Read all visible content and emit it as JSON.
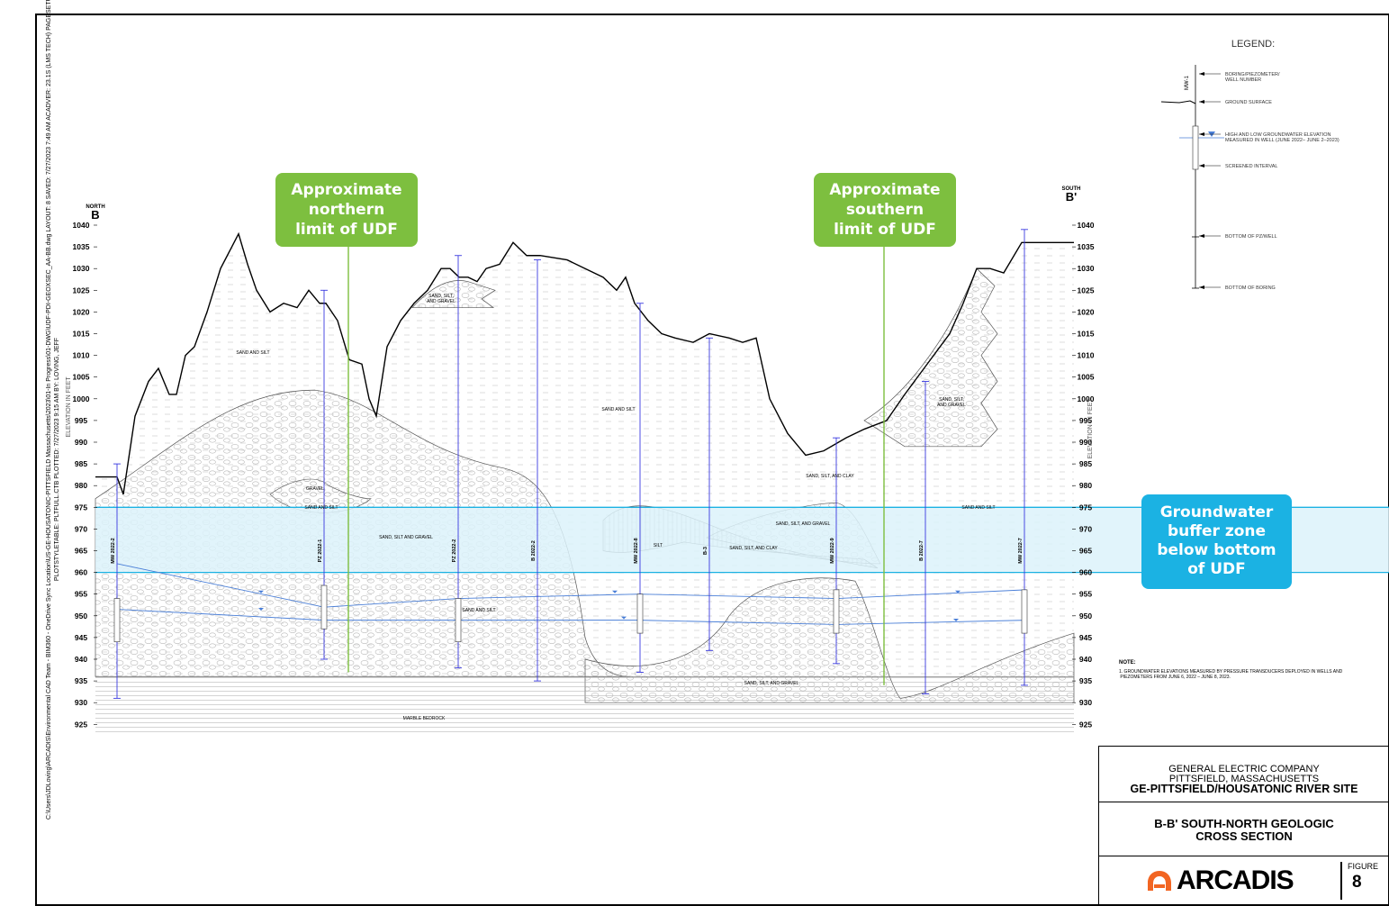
{
  "sheet_info": {
    "line1": "C:\\Users\\JDLoving\\ARCADIS\\Environmental CAD Team - BIM360 - OneDrive Sync Location\\US-GE-HOUSATONIC-PITTSFIELD Massachusetts\\2023\\01-In Progress\\01-DWG\\UDF-PDI-GEOXSEC_AA-BB.dwg   LAYOUT: 8   SAVED: 7/27/2023 7:49 AM   ACADVER: 23.1S (LMS TECH)   PAGESETUP: ---",
    "line2": "PLOTSTYLETABLE: PLTFULL.CTB   PLOTTED: 7/27/2023 9:15 AM   BY: LOVING, JEFF"
  },
  "section": {
    "left_end": {
      "direction": "NORTH",
      "letter": "B"
    },
    "right_end": {
      "direction": "SOUTH",
      "letter": "B'"
    },
    "axis_label": "ELEVATION IN FEET",
    "elevations": [
      1040,
      1035,
      1030,
      1025,
      1020,
      1015,
      1010,
      1005,
      1000,
      995,
      990,
      985,
      980,
      975,
      970,
      965,
      960,
      955,
      950,
      945,
      940,
      935,
      930,
      925
    ]
  },
  "wells": [
    {
      "id": "MW 2022-2",
      "top": 985,
      "bottom": 931,
      "screen_top": 954,
      "screen_bottom": 944
    },
    {
      "id": "PZ 2022-1",
      "top": 1025,
      "bottom": 940,
      "screen_top": 957,
      "screen_bottom": 947
    },
    {
      "id": "PZ 2022-2",
      "top": 1033,
      "bottom": 938,
      "screen_top": 954,
      "screen_bottom": 944
    },
    {
      "id": "B 2022-2",
      "top": 1032,
      "bottom": 935
    },
    {
      "id": "MW 2022-8",
      "top": 1022,
      "bottom": 937,
      "screen_top": 955,
      "screen_bottom": 946
    },
    {
      "id": "B-3",
      "top": 1014,
      "bottom": 942
    },
    {
      "id": "MW 2022-9",
      "top": 991,
      "bottom": 939,
      "screen_top": 956,
      "screen_bottom": 946
    },
    {
      "id": "B 2022-7",
      "top": 1004,
      "bottom": 932
    },
    {
      "id": "MW 2022-7",
      "top": 1039,
      "bottom": 934,
      "screen_top": 956,
      "screen_bottom": 946
    }
  ],
  "unit_labels": {
    "sand_silt_1": "SAND AND SILT",
    "sand_silt_gravel_top": "SAND, SILT,\nAND GRAVEL",
    "sand_silt_2": "SAND AND SILT",
    "sand_silt_gravel_right": "SAND, SILT,\nAND GRAVEL",
    "sand_silt_clay_small": "SAND, SILT, AND CLAY",
    "gravel": "GRAVEL",
    "sand_silt_small": "SAND AND SILT",
    "sand_silt_gravel_mid": "SAND, SILT AND GRAVEL",
    "sand_silt_gravel_lens": "SAND, SILT, AND GRAVEL",
    "silt": "SILT",
    "sand_silt_clay_mid": "SAND, SILT, AND CLAY",
    "sand_silt_right": "SAND AND SILT",
    "sand_silt_lower": "SAND AND SILT",
    "sand_silt_gravel_bottom": "SAND, SILT, AND GRAVEL",
    "bedrock": "MARBLE BEDROCK"
  },
  "callouts": {
    "north": "Approximate\nnorthern\nlimit of UDF",
    "south": "Approximate\nsouthern\nlimit of UDF",
    "buffer": "Groundwater\nbuffer zone\nbelow bottom\nof UDF"
  },
  "legend": {
    "title": "LEGEND:",
    "well_label": "MW-1",
    "items": {
      "boring": "BORING/PIEZOMETER/\nWELL NUMBER",
      "ground": "GROUND SURFACE",
      "water": "HIGH AND LOW GROUNDWATER ELEVATION\nMEASURED IN WELL (JUNE 2022– JUNE 2–2023)",
      "screen": "SCREENED INTERVAL",
      "bottom_pz": "BOTTOM OF PZ/WELL",
      "bottom_boring": "BOTTOM OF BORING"
    }
  },
  "note": {
    "title": "NOTE:",
    "text": "1.   GROUNDWATER ELEVATIONS MEASURED BY PRESSURE TRANSDUCERS DEPLOYED IN WELLS AND\n       PIEZOMETERS FROM JUNE 6, 2022 – JUNE 8, 2023."
  },
  "title_block": {
    "company": "GENERAL ELECTRIC COMPANY",
    "location": "PITTSFIELD, MASSACHUSETTS",
    "site": "GE-PITTSFIELD/HOUSATONIC RIVER SITE",
    "title1": "B-B' SOUTH-NORTH GEOLOGIC",
    "title2": "CROSS SECTION",
    "logo": "ARCADIS",
    "figure_label": "FIGURE",
    "figure_number": "8"
  },
  "colors": {
    "buffer_fill": "#dcf2fa",
    "buffer_line": "#1bb2e3",
    "well_line": "#3a3ae0",
    "udf_line": "#7dbf3f",
    "water_line": "#4a7fd8",
    "green_callout": "#7dbf3f",
    "blue_callout": "#1bb2e3",
    "logo_orange": "#f26522"
  }
}
